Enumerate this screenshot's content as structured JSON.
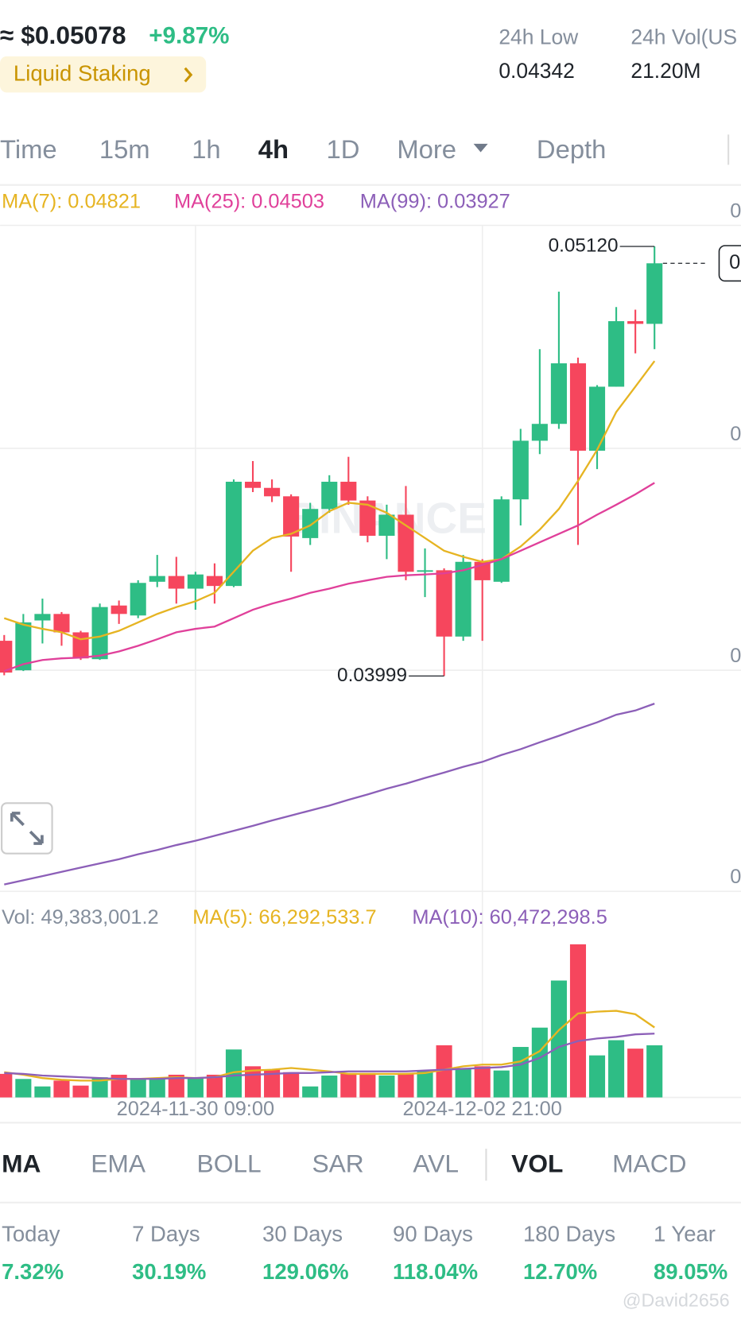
{
  "header": {
    "price": "≈ $0.05078",
    "change": "+9.87%",
    "tag": "Liquid Staking",
    "stats": [
      {
        "label": "24h Low",
        "value": "0.04342"
      },
      {
        "label": "24h Vol(US",
        "value": "21.20M"
      }
    ]
  },
  "tabs": {
    "items": [
      "Time",
      "15m",
      "1h",
      "4h",
      "1D",
      "More",
      "Depth"
    ],
    "active": 3
  },
  "chart_data": {
    "type": "candlestick",
    "up_color": "#2ebd85",
    "down_color": "#f6465d",
    "categories": [
      null,
      null,
      null,
      null,
      null,
      null,
      null,
      null,
      null,
      null,
      "2024-11-30 09:00",
      null,
      null,
      null,
      null,
      null,
      null,
      null,
      null,
      null,
      null,
      null,
      null,
      null,
      null,
      "2024-12-02 21:00",
      null,
      null,
      null,
      null,
      null,
      null,
      null,
      null,
      null
    ],
    "open": [
      0.04091,
      0.04014,
      0.04144,
      0.04161,
      0.04113,
      0.04043,
      0.04183,
      0.04157,
      0.04245,
      0.0426,
      0.04227,
      0.0426,
      0.04234,
      0.04506,
      0.0449,
      0.04468,
      0.04359,
      0.04435,
      0.04506,
      0.04457,
      0.04365,
      0.0442,
      0.04271,
      0.04275,
      0.04102,
      0.04297,
      0.04245,
      0.0446,
      0.04613,
      0.04657,
      0.04815,
      0.04587,
      0.04754,
      0.04925,
      0.04918
    ],
    "high": [
      0.04106,
      0.04161,
      0.04201,
      0.04166,
      0.04117,
      0.04188,
      0.04196,
      0.04249,
      0.04315,
      0.0431,
      0.04271,
      0.04293,
      0.04512,
      0.0456,
      0.04512,
      0.04473,
      0.04451,
      0.04523,
      0.04571,
      0.04468,
      0.04446,
      0.04495,
      0.04332,
      0.0428,
      0.04315,
      0.04304,
      0.04468,
      0.04644,
      0.04852,
      0.05002,
      0.0483,
      0.04758,
      0.04962,
      0.04955,
      0.0512
    ],
    "low": [
      0.04001,
      0.04012,
      0.04084,
      0.04078,
      0.04041,
      0.04041,
      0.04135,
      0.0415,
      0.04231,
      0.04188,
      0.04172,
      0.04188,
      0.04231,
      0.04479,
      0.04453,
      0.04271,
      0.04341,
      0.04425,
      0.04446,
      0.04348,
      0.04304,
      0.04249,
      0.04205,
      0.03999,
      0.04091,
      0.04091,
      0.04242,
      0.04392,
      0.04578,
      0.04644,
      0.04341,
      0.04539,
      0.04754,
      0.04841,
      0.04852
    ],
    "close": [
      0.04008,
      0.04139,
      0.04161,
      0.04113,
      0.04045,
      0.04179,
      0.04161,
      0.04242,
      0.0426,
      0.04227,
      0.04264,
      0.04234,
      0.04506,
      0.0449,
      0.04468,
      0.04363,
      0.04435,
      0.04506,
      0.04457,
      0.04365,
      0.0442,
      0.04271,
      0.04275,
      0.04102,
      0.04297,
      0.04249,
      0.0446,
      0.04613,
      0.04657,
      0.04815,
      0.04587,
      0.04754,
      0.04925,
      0.04918,
      0.05076
    ],
    "series": [
      {
        "label": "MA(7): 0.04821",
        "color": "#e6b422",
        "values": [
          0.0415,
          0.04133,
          0.04122,
          0.04113,
          0.04095,
          0.04102,
          0.04117,
          0.04139,
          0.04161,
          0.04179,
          0.04194,
          0.04216,
          0.04271,
          0.04326,
          0.04359,
          0.0437,
          0.04392,
          0.04429,
          0.04451,
          0.04446,
          0.04425,
          0.04392,
          0.04359,
          0.04326,
          0.0431,
          0.04297,
          0.04304,
          0.04337,
          0.04381,
          0.04435,
          0.04508,
          0.04589,
          0.04688,
          0.04754,
          0.04821
        ]
      },
      {
        "label": "MA(25): 0.04503",
        "color": "#e0409a",
        "values": [
          0.04012,
          0.0403,
          0.04041,
          0.04045,
          0.04047,
          0.04052,
          0.04063,
          0.04078,
          0.04095,
          0.04113,
          0.04122,
          0.04128,
          0.0415,
          0.04172,
          0.04188,
          0.04201,
          0.04216,
          0.04227,
          0.0424,
          0.04249,
          0.04258,
          0.04262,
          0.04264,
          0.04267,
          0.04275,
          0.04289,
          0.04304,
          0.04326,
          0.04348,
          0.0437,
          0.04392,
          0.0442,
          0.04446,
          0.04473,
          0.04503
        ]
      },
      {
        "label": "MA(99): 0.03927",
        "color": "#8c5fb8",
        "values": [
          0.03455,
          0.03466,
          0.03477,
          0.03488,
          0.03499,
          0.0351,
          0.03521,
          0.03534,
          0.03545,
          0.03558,
          0.03569,
          0.03582,
          0.03595,
          0.03608,
          0.03622,
          0.03635,
          0.03648,
          0.03661,
          0.03676,
          0.0369,
          0.03705,
          0.03718,
          0.03733,
          0.03747,
          0.03762,
          0.03775,
          0.03793,
          0.03808,
          0.03826,
          0.03843,
          0.03861,
          0.03878,
          0.03898,
          0.03909,
          0.03927
        ]
      }
    ],
    "ylim": [
      0.03437,
      0.05175
    ],
    "yticks": [
      {
        "value": 0.05175,
        "label": "0"
      },
      {
        "value": 0.04593,
        "label": "0"
      },
      {
        "value": 0.04014,
        "label": "0"
      },
      {
        "value": 0.03437,
        "label": "0"
      }
    ],
    "grid": true,
    "high_label": "0.05120",
    "low_label": "0.03999",
    "current_price_label": "0",
    "watermark": "BINANCE",
    "volume": {
      "label": "Vol: 49,383,001.2",
      "values": [
        22300000,
        17500000,
        10400000,
        15900000,
        11200000,
        19100000,
        21500000,
        17500000,
        17500000,
        21500000,
        18300000,
        21500000,
        45400000,
        29500000,
        26300000,
        23900000,
        10400000,
        20700000,
        23100000,
        23100000,
        20700000,
        23100000,
        25500000,
        49400000,
        27900000,
        29500000,
        25500000,
        47800000,
        66100000,
        110700000,
        145000000,
        39800000,
        54200000,
        46200000,
        49383001.2
      ],
      "ylim": [
        0,
        179200000
      ],
      "series": [
        {
          "label": "MA(5): 66,292,533.7",
          "color": "#e6b422",
          "values": [
            23900000,
            21500000,
            18300000,
            16700000,
            15900000,
            15900000,
            17500000,
            17500000,
            18300000,
            19100000,
            18300000,
            19100000,
            23900000,
            25500000,
            26300000,
            27900000,
            26300000,
            24700000,
            22300000,
            22300000,
            22300000,
            22300000,
            23100000,
            26300000,
            29500000,
            31100000,
            31100000,
            34200000,
            43800000,
            63700000,
            79600000,
            81200000,
            82000000,
            78800000,
            66292533.7
          ]
        },
        {
          "label": "MA(10): 60,472,298.5",
          "color": "#8c5fb8",
          "values": [
            23100000,
            22300000,
            20700000,
            19900000,
            19100000,
            18300000,
            17500000,
            17500000,
            17500000,
            18300000,
            18300000,
            19100000,
            20700000,
            21500000,
            22300000,
            23100000,
            23100000,
            23900000,
            24700000,
            24700000,
            24700000,
            24700000,
            25500000,
            26300000,
            27100000,
            27900000,
            28700000,
            31100000,
            37400000,
            47800000,
            53400000,
            55800000,
            57300000,
            59700000,
            60472298.5
          ]
        }
      ]
    }
  },
  "indicators": {
    "items": [
      "MA",
      "EMA",
      "BOLL",
      "SAR",
      "AVL",
      "VOL",
      "MACD"
    ],
    "active": [
      0,
      5
    ]
  },
  "performance": [
    {
      "label": "Today",
      "value": "7.32%"
    },
    {
      "label": "7 Days",
      "value": "30.19%"
    },
    {
      "label": "30 Days",
      "value": "129.06%"
    },
    {
      "label": "90 Days",
      "value": "118.04%"
    },
    {
      "label": "180 Days",
      "value": "12.70%"
    },
    {
      "label": "1 Year",
      "value": "89.05%"
    }
  ],
  "credit": "@David2656"
}
